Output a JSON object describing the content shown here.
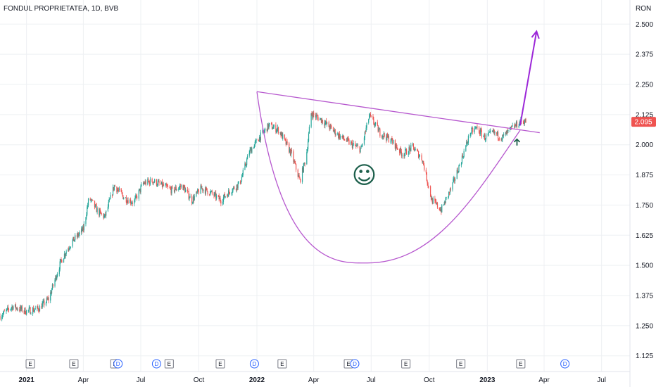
{
  "chart_data": {
    "type": "candlestick",
    "title": "FONDUL PROPRIETATEA, 1D, BVB",
    "currency": "RON",
    "last_price": "2.095",
    "last_price_value": 2.095,
    "y_ticks": [
      "2.500",
      "2.375",
      "2.250",
      "2.125",
      "2.000",
      "1.875",
      "1.750",
      "1.625",
      "1.500",
      "1.375",
      "1.250",
      "1.125"
    ],
    "y_tick_values": [
      2.5,
      2.375,
      2.25,
      2.125,
      2.0,
      1.875,
      1.75,
      1.625,
      1.5,
      1.375,
      1.25,
      1.125
    ],
    "x_ticks": [
      "2021",
      "Apr",
      "Jul",
      "Oct",
      "2022",
      "Apr",
      "Jul",
      "Oct",
      "2023",
      "Apr",
      "Jul"
    ],
    "x_tick_dates": [
      "2021-01-01",
      "2021-04-01",
      "2021-07-01",
      "2021-10-01",
      "2022-01-01",
      "2022-04-01",
      "2022-07-01",
      "2022-10-01",
      "2023-01-01",
      "2023-04-01",
      "2023-07-01"
    ],
    "x_range": [
      "2020-11-20",
      "2023-08-15"
    ],
    "ylim": [
      1.06,
      2.6
    ],
    "grid": true,
    "up_color": "#26a69a",
    "down_color": "#ef5350",
    "price_path": [
      [
        "2020-11-20",
        1.29
      ],
      [
        "2020-12-10",
        1.33
      ],
      [
        "2020-12-31",
        1.31
      ],
      [
        "2021-01-20",
        1.32
      ],
      [
        "2021-02-05",
        1.36
      ],
      [
        "2021-02-15",
        1.44
      ],
      [
        "2021-02-25",
        1.52
      ],
      [
        "2021-03-05",
        1.56
      ],
      [
        "2021-03-15",
        1.6
      ],
      [
        "2021-04-01",
        1.65
      ],
      [
        "2021-04-10",
        1.78
      ],
      [
        "2021-04-25",
        1.72
      ],
      [
        "2021-05-05",
        1.7
      ],
      [
        "2021-05-20",
        1.83
      ],
      [
        "2021-06-05",
        1.78
      ],
      [
        "2021-06-20",
        1.76
      ],
      [
        "2021-07-05",
        1.84
      ],
      [
        "2021-07-20",
        1.85
      ],
      [
        "2021-08-05",
        1.83
      ],
      [
        "2021-08-20",
        1.81
      ],
      [
        "2021-09-05",
        1.83
      ],
      [
        "2021-09-20",
        1.77
      ],
      [
        "2021-10-05",
        1.82
      ],
      [
        "2021-10-20",
        1.8
      ],
      [
        "2021-11-05",
        1.77
      ],
      [
        "2021-11-20",
        1.81
      ],
      [
        "2021-12-05",
        1.84
      ],
      [
        "2021-12-20",
        1.97
      ],
      [
        "2022-01-05",
        2.03
      ],
      [
        "2022-01-20",
        2.08
      ],
      [
        "2022-02-05",
        2.06
      ],
      [
        "2022-02-25",
        1.96
      ],
      [
        "2022-03-10",
        1.85
      ],
      [
        "2022-03-20",
        1.95
      ],
      [
        "2022-03-28",
        2.13
      ],
      [
        "2022-04-15",
        2.1
      ],
      [
        "2022-05-10",
        2.04
      ],
      [
        "2022-06-01",
        2.0
      ],
      [
        "2022-06-15",
        1.98
      ],
      [
        "2022-06-28",
        2.12
      ],
      [
        "2022-07-15",
        2.05
      ],
      [
        "2022-08-01",
        2.02
      ],
      [
        "2022-08-20",
        1.96
      ],
      [
        "2022-09-05",
        1.99
      ],
      [
        "2022-09-20",
        1.94
      ],
      [
        "2022-10-05",
        1.77
      ],
      [
        "2022-10-20",
        1.73
      ],
      [
        "2022-11-05",
        1.82
      ],
      [
        "2022-11-20",
        1.93
      ],
      [
        "2022-12-05",
        2.05
      ],
      [
        "2022-12-15",
        2.07
      ],
      [
        "2022-12-28",
        2.03
      ],
      [
        "2023-01-10",
        2.05
      ],
      [
        "2023-01-25",
        2.03
      ],
      [
        "2023-02-10",
        2.07
      ],
      [
        "2023-02-25",
        2.1
      ],
      [
        "2023-03-05",
        2.095
      ]
    ],
    "annotations": {
      "resistance_line": [
        [
          "2022-01-01",
          2.22
        ],
        [
          "2023-03-25",
          2.05
        ]
      ],
      "cup_curve": [
        [
          "2022-01-01",
          2.22
        ],
        [
          "2022-06-25",
          1.51
        ],
        [
          "2023-02-22",
          2.06
        ]
      ],
      "breakout_arrow": [
        [
          "2023-02-22",
          2.08
        ],
        [
          "2023-03-20",
          2.47
        ]
      ],
      "small_arrow": [
        "2023-02-17",
        2.02
      ],
      "smiley": "☺"
    },
    "events": [
      {
        "date": "2021-01-07",
        "label": "E"
      },
      {
        "date": "2021-03-17",
        "label": "E"
      },
      {
        "date": "2021-05-21",
        "label": "E"
      },
      {
        "date": "2021-05-26",
        "label": "D"
      },
      {
        "date": "2021-07-26",
        "label": "D"
      },
      {
        "date": "2021-08-15",
        "label": "E"
      },
      {
        "date": "2021-11-04",
        "label": "E"
      },
      {
        "date": "2021-12-28",
        "label": "D"
      },
      {
        "date": "2022-02-10",
        "label": "E"
      },
      {
        "date": "2022-05-26",
        "label": "E"
      },
      {
        "date": "2022-06-05",
        "label": "D"
      },
      {
        "date": "2022-08-25",
        "label": "E"
      },
      {
        "date": "2022-11-20",
        "label": "E"
      },
      {
        "date": "2023-02-23",
        "label": "E"
      },
      {
        "date": "2023-05-04",
        "label": "D"
      }
    ],
    "colors": {
      "pattern_line": "#b657ce",
      "breakout_arrow": "#9c27d8",
      "small_arrow": "#1b5e4a",
      "smiley": "#1b5e4a",
      "price_label_bg": "#ef5350",
      "grid": "#eef0f3",
      "dividend": "#2962ff"
    }
  }
}
